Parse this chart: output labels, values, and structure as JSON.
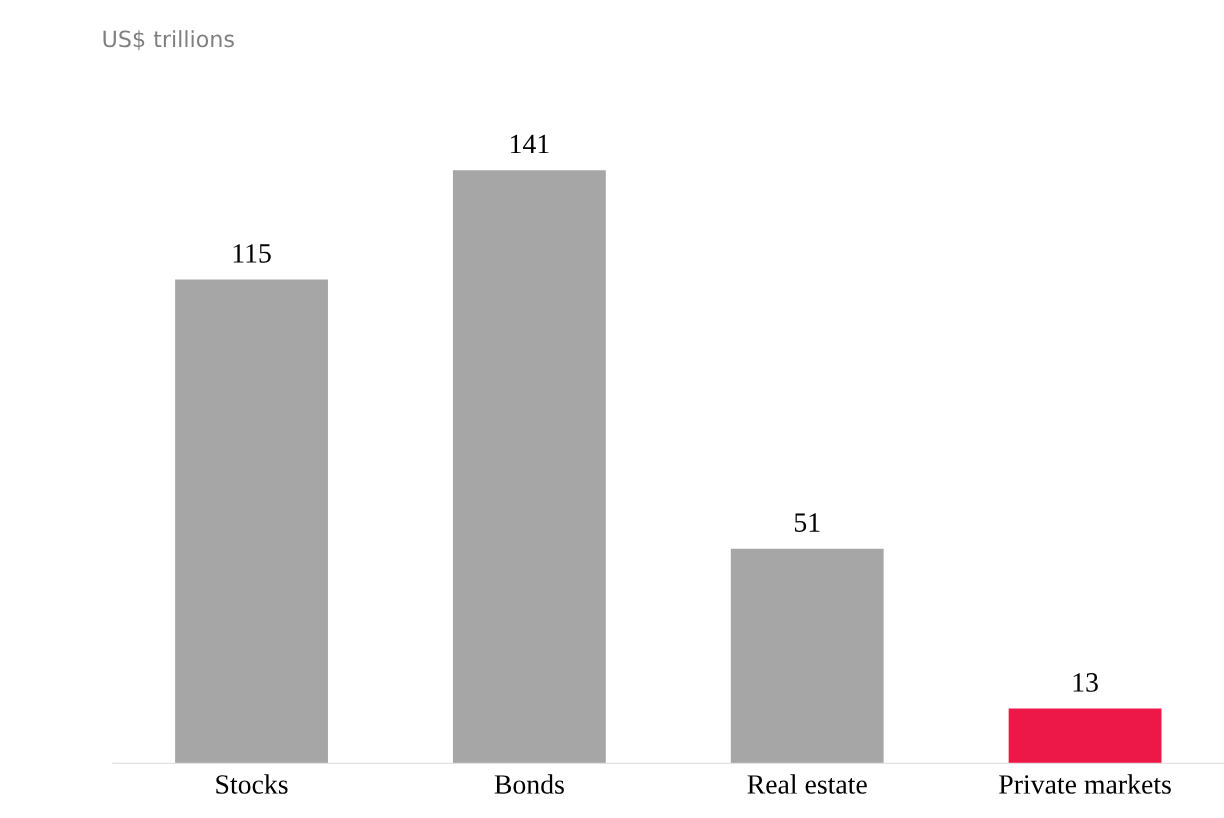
{
  "chart_data": {
    "type": "bar",
    "annotations": [
      "US$ trillions"
    ],
    "categories": [
      "Stocks",
      "Bonds",
      "Real estate",
      "Private markets"
    ],
    "values": [
      115,
      141,
      51,
      13
    ],
    "colors": [
      "#a6a6a6",
      "#a6a6a6",
      "#a6a6a6",
      "#ee1848"
    ],
    "data_labels": true,
    "grid": false,
    "legend": false
  }
}
